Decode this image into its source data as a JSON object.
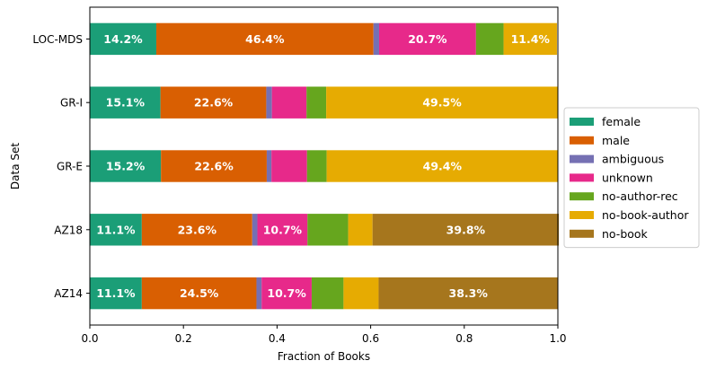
{
  "chart_data": {
    "type": "bar",
    "orientation": "horizontal",
    "stacked": true,
    "categories": [
      "LOC-MDS",
      "GR-I",
      "GR-E",
      "AZ18",
      "AZ14"
    ],
    "xlabel": "Fraction of Books",
    "ylabel": "Data Set",
    "xlim": [
      0,
      1
    ],
    "xticks": [
      "0.0",
      "0.2",
      "0.4",
      "0.6",
      "0.8",
      "1.0"
    ],
    "legend_position": "right",
    "series": [
      {
        "name": "female",
        "color": "#1b9e77",
        "values": [
          0.142,
          0.151,
          0.152,
          0.111,
          0.111
        ],
        "labels": [
          "14.2%",
          "15.1%",
          "15.2%",
          "11.1%",
          "11.1%"
        ]
      },
      {
        "name": "male",
        "color": "#d95f02",
        "values": [
          0.464,
          0.226,
          0.226,
          0.236,
          0.245
        ],
        "labels": [
          "46.4%",
          "22.6%",
          "22.6%",
          "23.6%",
          "24.5%"
        ]
      },
      {
        "name": "ambiguous",
        "color": "#7570b3",
        "values": [
          0.012,
          0.012,
          0.01,
          0.011,
          0.011
        ],
        "labels": [
          "",
          "",
          "",
          "",
          ""
        ]
      },
      {
        "name": "unknown",
        "color": "#e7298a",
        "values": [
          0.207,
          0.074,
          0.076,
          0.107,
          0.107
        ],
        "labels": [
          "20.7%",
          "",
          "",
          "10.7%",
          "10.7%"
        ]
      },
      {
        "name": "no-author-rec",
        "color": "#66a61e",
        "values": [
          0.059,
          0.042,
          0.042,
          0.087,
          0.068
        ],
        "labels": [
          "",
          "",
          "",
          "",
          ""
        ]
      },
      {
        "name": "no-book-author",
        "color": "#e6ab02",
        "values": [
          0.114,
          0.495,
          0.494,
          0.052,
          0.075
        ],
        "labels": [
          "11.4%",
          "49.5%",
          "49.4%",
          "",
          ""
        ]
      },
      {
        "name": "no-book",
        "color": "#a6761d",
        "values": [
          0,
          0,
          0,
          0.398,
          0.383
        ],
        "labels": [
          "",
          "",
          "",
          "39.8%",
          "38.3%"
        ]
      }
    ]
  }
}
